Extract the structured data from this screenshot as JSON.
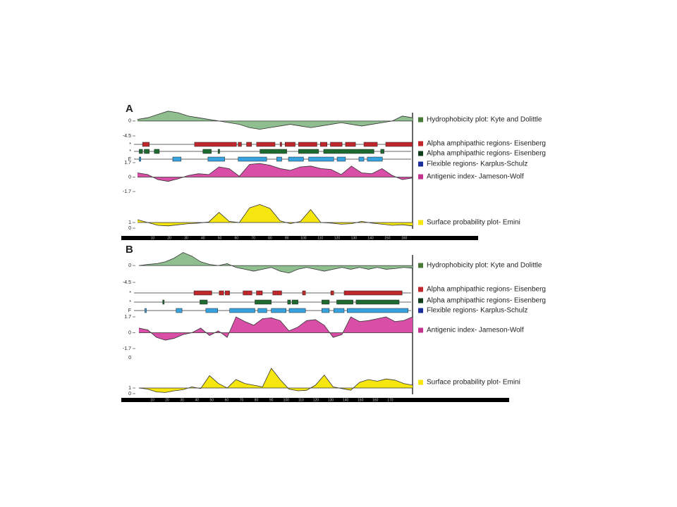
{
  "panels": [
    {
      "label": "A",
      "xlim": [
        1,
        165
      ],
      "xticks": [
        10,
        20,
        30,
        40,
        50,
        60,
        70,
        80,
        90,
        100,
        110,
        120,
        130,
        140,
        150,
        160
      ],
      "hydrophobicity": {
        "legend": "Hydrophobicity plot: Kyte and Dolittle",
        "color": "#8fbf8f",
        "legend_color": "#4a7a3a",
        "ylim": [
          -4.5,
          3.6
        ],
        "yticks": [
          0,
          -4.5
        ],
        "values": [
          0.5,
          1,
          2,
          3,
          2.5,
          1.5,
          1,
          0.5,
          0,
          -0.5,
          -1,
          -2,
          -2.5,
          -2,
          -1.5,
          -1,
          -1.5,
          -2,
          -1.5,
          -1,
          -0.5,
          -1,
          -1.5,
          -1,
          -0.5,
          0,
          1.5,
          1
        ]
      },
      "regions": [
        {
          "label": "*",
          "legend": "Alpha amphipathic regions- Eisenberg",
          "color": "#c0272d",
          "legend_color": "#c0272d",
          "segments": [
            [
              4,
              8
            ],
            [
              35,
              60
            ],
            [
              61,
              63
            ],
            [
              66,
              69
            ],
            [
              72,
              83
            ],
            [
              86,
              87
            ],
            [
              89,
              95
            ],
            [
              97,
              108
            ],
            [
              110,
              114
            ],
            [
              116,
              123
            ],
            [
              125,
              131
            ],
            [
              136,
              144
            ],
            [
              149,
              165
            ]
          ]
        },
        {
          "label": "*",
          "legend": "Alpha amphipathic regions- Eisenberg",
          "color": "#1e6b32",
          "legend_color": "#123d1c",
          "segments": [
            [
              2,
              4
            ],
            [
              5,
              8
            ],
            [
              11,
              14
            ],
            [
              40,
              45
            ],
            [
              49,
              50
            ],
            [
              74,
              90
            ],
            [
              97,
              109
            ],
            [
              112,
              142
            ],
            [
              146,
              148
            ]
          ]
        },
        {
          "label": "F",
          "legend": "Flexible regions- Karplus-Schulz",
          "color": "#36a3e0",
          "legend_color": "#1a2f9c",
          "segments": [
            [
              2,
              3
            ],
            [
              22,
              27
            ],
            [
              43,
              53
            ],
            [
              61,
              78
            ],
            [
              84,
              87
            ],
            [
              91,
              100
            ],
            [
              103,
              118
            ],
            [
              120,
              125
            ],
            [
              133,
              136
            ],
            [
              138,
              147
            ]
          ]
        }
      ],
      "antigenic": {
        "legend": "Antigenic index- Jameson-Wolf",
        "color": "#d94fa7",
        "legend_color": "#c2318c",
        "ylim": [
          -1.7,
          1.7
        ],
        "yticks": [
          1.7,
          0,
          -1.7
        ],
        "baseline": 0,
        "values": [
          0.5,
          0.3,
          -0.3,
          -0.5,
          -0.2,
          0.2,
          0.4,
          0.3,
          1.2,
          1,
          0.1,
          1.5,
          1.6,
          1.4,
          1,
          0.8,
          1.2,
          1.3,
          1,
          0.9,
          0.3,
          1.3,
          0.5,
          0.4,
          1,
          0.2,
          -0.3,
          -0.1
        ]
      },
      "surface": {
        "legend": "Surface probability plot- Emini",
        "color": "#f5e60f",
        "legend_color": "#f5e60f",
        "ylim": [
          0,
          4.5
        ],
        "yticks": [
          1,
          0
        ],
        "baseline": 1,
        "values": [
          1.5,
          1,
          0.5,
          0.4,
          0.6,
          0.8,
          0.9,
          1.1,
          2.8,
          1.2,
          1,
          3.6,
          4.2,
          3.5,
          1.3,
          0.8,
          1.2,
          3.3,
          1,
          0.9,
          0.7,
          0.8,
          1.2,
          0.9,
          0.7,
          0.5,
          0.6,
          0.4
        ]
      }
    },
    {
      "label": "B",
      "xlim": [
        1,
        185
      ],
      "xticks": [
        10,
        20,
        30,
        40,
        50,
        60,
        70,
        80,
        90,
        100,
        110,
        120,
        130,
        140,
        150,
        160,
        170
      ],
      "hydrophobicity": {
        "legend": "Hydrophobicity plot: Kyte and Dolittle",
        "color": "#8fbf8f",
        "legend_color": "#4a7a3a",
        "ylim": [
          -4.5,
          3.6
        ],
        "yticks": [
          0,
          -4.5
        ],
        "values": [
          0,
          0.3,
          0.5,
          1,
          2,
          3.5,
          2.5,
          1,
          0.3,
          0,
          0.5,
          -0.5,
          -1,
          -1.5,
          -1,
          -0.5,
          -1.5,
          -2,
          -1,
          -0.5,
          -1,
          -1.5,
          -1,
          -0.5,
          -1,
          -0.5,
          -1,
          -0.5,
          -1,
          -0.8,
          -0.5,
          -0.7
        ]
      },
      "regions": [
        {
          "label": "*",
          "legend": "Alpha amphipathic regions- Eisenberg",
          "color": "#c0272d",
          "legend_color": "#c0272d",
          "segments": [
            [
              38,
              50
            ],
            [
              55,
              58
            ],
            [
              59,
              62
            ],
            [
              71,
              77
            ],
            [
              80,
              84
            ],
            [
              91,
              97
            ],
            [
              111,
              113
            ],
            [
              130,
              132
            ],
            [
              139,
              178
            ]
          ]
        },
        {
          "label": "*",
          "legend": "Alpha amphipathic regions- Eisenberg",
          "color": "#1e6b32",
          "legend_color": "#123d1c",
          "segments": [
            [
              17,
              18
            ],
            [
              42,
              47
            ],
            [
              79,
              90
            ],
            [
              101,
              103
            ],
            [
              104,
              108
            ],
            [
              124,
              129
            ],
            [
              134,
              145
            ],
            [
              147,
              176
            ]
          ]
        },
        {
          "label": "F",
          "legend": "Flexible regions- Karplus-Schulz",
          "color": "#36a3e0",
          "legend_color": "#1a2f9c",
          "segments": [
            [
              5,
              6
            ],
            [
              26,
              30
            ],
            [
              46,
              54
            ],
            [
              62,
              79
            ],
            [
              81,
              87
            ],
            [
              90,
              100
            ],
            [
              102,
              113
            ],
            [
              124,
              129
            ],
            [
              132,
              139
            ],
            [
              141,
              182
            ]
          ]
        }
      ],
      "antigenic": {
        "legend": "Antigenic index- Jameson-Wolf",
        "color": "#d94fa7",
        "legend_color": "#c2318c",
        "ylim": [
          -1.7,
          1.7
        ],
        "yticks": [
          1.7,
          0,
          -1.7
        ],
        "baseline": 0,
        "values": [
          0.5,
          0.3,
          -0.5,
          -0.8,
          -0.6,
          -0.2,
          0,
          0.5,
          -0.3,
          0.2,
          -0.5,
          1.7,
          1.2,
          0.8,
          1.5,
          1.6,
          1.3,
          0.2,
          0.6,
          1.3,
          1.4,
          0.8,
          -0.5,
          -0.2,
          1.7,
          1.2,
          1.3,
          1.5,
          1.7,
          1.2,
          1.3,
          1.7
        ]
      },
      "stray_label": "0",
      "surface": {
        "legend": "Surface probability plot- Emini",
        "color": "#f5e60f",
        "legend_color": "#f5e60f",
        "ylim": [
          0,
          5
        ],
        "yticks": [
          1,
          0
        ],
        "baseline": 1,
        "values": [
          1,
          0.8,
          0.3,
          0.2,
          0.5,
          0.7,
          1.2,
          0.9,
          3.2,
          1.8,
          1,
          2.5,
          1.8,
          1.5,
          1.2,
          4.5,
          2.5,
          0.8,
          0.5,
          0.6,
          1.5,
          3.3,
          1.2,
          0.9,
          0.6,
          2,
          2.5,
          2.2,
          2.6,
          2.4,
          1.8,
          1.5
        ]
      }
    }
  ]
}
